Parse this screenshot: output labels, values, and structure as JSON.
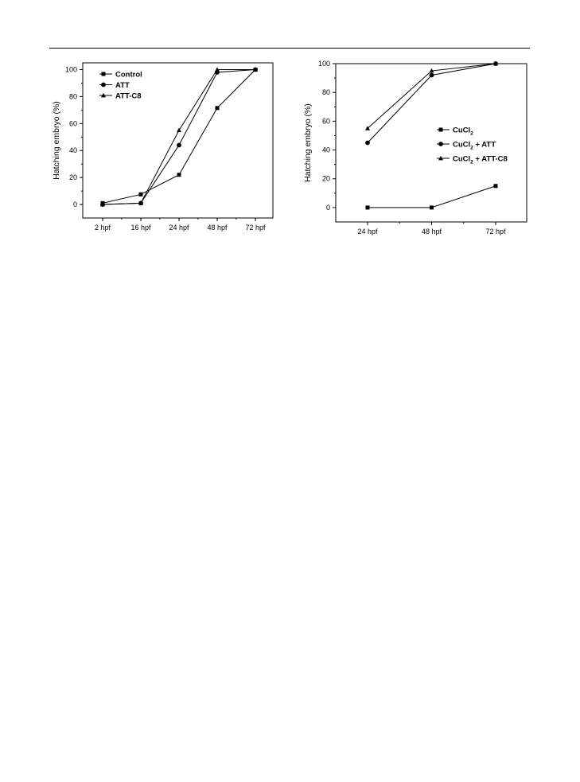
{
  "chart_data": [
    {
      "type": "line",
      "title": "",
      "xlabel": "",
      "ylabel": "Hatching embryo (%)",
      "categories": [
        "2 hpf",
        "16 hpf",
        "24 hpf",
        "48 hpf",
        "72 hpf"
      ],
      "ylim": [
        -10,
        105
      ],
      "yticks": [
        0,
        20,
        40,
        60,
        80,
        100
      ],
      "legend_position": "top-left",
      "grid": false,
      "series": [
        {
          "name": "Control",
          "marker": "square",
          "values": [
            1,
            7.5,
            22,
            71.5,
            100
          ]
        },
        {
          "name": "ATT",
          "marker": "circle",
          "values": [
            0,
            1,
            44,
            98,
            100
          ]
        },
        {
          "name": "ATT-C8",
          "marker": "triangle",
          "values": [
            0,
            1,
            55,
            100,
            100
          ]
        }
      ]
    },
    {
      "type": "line",
      "title": "",
      "xlabel": "",
      "ylabel": "Hatching embryo (%)",
      "categories": [
        "24 hpf",
        "48 hpf",
        "72 hpf"
      ],
      "ylim": [
        -10,
        100
      ],
      "yticks": [
        0,
        20,
        40,
        60,
        80,
        100
      ],
      "legend_position": "middle-right",
      "grid": false,
      "series": [
        {
          "name": "CuCl2",
          "marker": "square",
          "values": [
            0,
            0,
            15
          ]
        },
        {
          "name": "CuCl2 + ATT",
          "marker": "circle",
          "values": [
            45,
            92,
            100
          ]
        },
        {
          "name": "CuCl2 + ATT-C8",
          "marker": "triangle",
          "values": [
            55,
            95,
            100
          ]
        }
      ]
    }
  ]
}
